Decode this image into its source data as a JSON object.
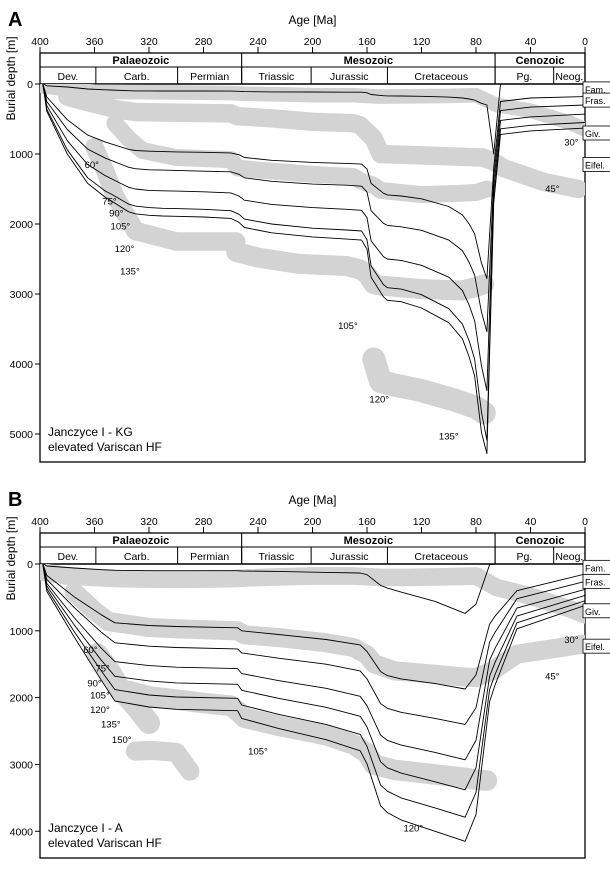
{
  "chart_data": [
    {
      "type": "line",
      "panel_label": "A",
      "title": "",
      "xlabel": "Age [Ma]",
      "ylabel": "Burial depth [m]",
      "xlim": [
        400,
        0
      ],
      "ylim": [
        0,
        5400
      ],
      "x_ticks": [
        400,
        360,
        320,
        280,
        240,
        200,
        160,
        120,
        80,
        40,
        0
      ],
      "y_ticks": [
        0,
        1000,
        2000,
        3000,
        4000,
        5000
      ],
      "eras": [
        {
          "label": "Palaeozoic",
          "from": 400,
          "to": 252
        },
        {
          "label": "Mesozoic",
          "from": 252,
          "to": 66
        },
        {
          "label": "Cenozoic",
          "from": 66,
          "to": 0
        }
      ],
      "periods": [
        {
          "label": "Dev.",
          "from": 400,
          "to": 359
        },
        {
          "label": "Carb.",
          "from": 359,
          "to": 299
        },
        {
          "label": "Permian",
          "from": 299,
          "to": 252
        },
        {
          "label": "Triassic",
          "from": 252,
          "to": 201
        },
        {
          "label": "Jurassic",
          "from": 201,
          "to": 145
        },
        {
          "label": "Cretaceous",
          "from": 145,
          "to": 66
        },
        {
          "label": "Pg.",
          "from": 66,
          "to": 23
        },
        {
          "label": "Neog.",
          "from": 23,
          "to": 0
        }
      ],
      "stage_labels": [
        "Fam.",
        "Fras.",
        "Giv.",
        "Eifel."
      ],
      "annotation": [
        "Janczyce I - KG",
        "elevated Variscan HF"
      ],
      "series": [
        {
          "x": [
            398,
            395,
            380,
            365,
            352,
            348,
            335,
            330,
            320,
            310,
            300,
            280,
            260,
            254,
            250,
            230,
            200,
            175,
            164,
            160,
            157,
            148,
            145,
            135,
            120,
            100,
            90,
            85,
            81,
            76,
            72,
            67,
            62,
            40,
            0
          ],
          "y": [
            -10,
            25,
            43,
            71,
            83,
            86,
            95,
            98,
            99,
            100,
            100,
            100,
            101,
            104,
            109,
            113,
            115,
            117,
            117,
            125,
            150,
            167,
            170,
            171,
            175,
            187,
            200,
            215,
            230,
            275,
            300,
            1000,
            0,
            0,
            0
          ]
        },
        {
          "x": [
            398,
            395,
            380,
            365,
            352,
            348,
            335,
            330,
            320,
            310,
            300,
            280,
            260,
            254,
            250,
            230,
            200,
            175,
            164,
            160,
            157,
            148,
            145,
            135,
            120,
            100,
            90,
            85,
            81,
            76,
            72,
            67,
            62,
            40,
            0
          ],
          "y": [
            -10,
            185,
            510,
            730,
            830,
            855,
            935,
            950,
            960,
            965,
            970,
            975,
            985,
            1010,
            1050,
            1090,
            1120,
            1135,
            1145,
            1215,
            1420,
            1560,
            1585,
            1600,
            1640,
            1750,
            1870,
            2000,
            2140,
            2560,
            2780,
            1200,
            250,
            200,
            180
          ]
        },
        {
          "x": [
            398,
            395,
            380,
            365,
            352,
            348,
            335,
            330,
            320,
            310,
            300,
            280,
            260,
            254,
            250,
            230,
            200,
            175,
            164,
            160,
            157,
            148,
            145,
            135,
            120,
            100,
            90,
            85,
            81,
            76,
            72,
            67,
            62,
            40,
            0
          ],
          "y": [
            -10,
            250,
            650,
            930,
            1060,
            1090,
            1190,
            1210,
            1225,
            1230,
            1235,
            1245,
            1255,
            1290,
            1340,
            1390,
            1430,
            1445,
            1460,
            1545,
            1810,
            1990,
            2020,
            2040,
            2090,
            2230,
            2380,
            2550,
            2730,
            3260,
            3540,
            1350,
            380,
            330,
            300
          ]
        },
        {
          "x": [
            398,
            395,
            380,
            365,
            352,
            348,
            335,
            330,
            320,
            310,
            300,
            280,
            260,
            254,
            250,
            230,
            200,
            175,
            164,
            160,
            157,
            148,
            145,
            135,
            120,
            100,
            90,
            85,
            81,
            76,
            72,
            67,
            62,
            40,
            0
          ],
          "y": [
            -10,
            310,
            810,
            1150,
            1310,
            1350,
            1475,
            1500,
            1520,
            1525,
            1530,
            1540,
            1555,
            1600,
            1660,
            1720,
            1765,
            1790,
            1805,
            1910,
            2240,
            2465,
            2500,
            2520,
            2590,
            2760,
            2950,
            3160,
            3380,
            4030,
            4380,
            1500,
            520,
            470,
            430
          ]
        },
        {
          "x": [
            398,
            395,
            380,
            365,
            352,
            348,
            335,
            330,
            320,
            310,
            300,
            280,
            260,
            254,
            250,
            230,
            200,
            175,
            164,
            160,
            157,
            148,
            145,
            135,
            120,
            100,
            90,
            85,
            81,
            76,
            72,
            67,
            62,
            40,
            0
          ],
          "y": [
            -10,
            360,
            940,
            1340,
            1530,
            1570,
            1715,
            1745,
            1765,
            1775,
            1780,
            1790,
            1810,
            1860,
            1930,
            2000,
            2060,
            2085,
            2100,
            2225,
            2600,
            2865,
            2910,
            2930,
            3010,
            3210,
            3430,
            3670,
            3930,
            4690,
            5090,
            1650,
            640,
            590,
            550
          ]
        },
        {
          "x": [
            398,
            395,
            380,
            365,
            352,
            348,
            335,
            330,
            320,
            310,
            300,
            280,
            260,
            254,
            250,
            230,
            200,
            175,
            164,
            160,
            157,
            148,
            145,
            135,
            120,
            100,
            90,
            85,
            81,
            76,
            72,
            67,
            62,
            40,
            0
          ],
          "y": [
            -10,
            390,
            1000,
            1420,
            1620,
            1665,
            1825,
            1855,
            1875,
            1885,
            1890,
            1900,
            1920,
            1975,
            2050,
            2125,
            2185,
            2215,
            2230,
            2360,
            2760,
            3040,
            3090,
            3110,
            3200,
            3410,
            3640,
            3900,
            4170,
            4980,
            5280,
            1700,
            720,
            670,
            630
          ]
        }
      ]
    },
    {
      "type": "line",
      "panel_label": "B",
      "title": "",
      "xlabel": "Age [Ma]",
      "ylabel": "Burial depth [m]",
      "xlim": [
        400,
        0
      ],
      "ylim": [
        0,
        4400
      ],
      "x_ticks": [
        400,
        360,
        320,
        280,
        240,
        200,
        160,
        120,
        80,
        40,
        0
      ],
      "y_ticks": [
        0,
        1000,
        2000,
        3000,
        4000
      ],
      "eras": [
        {
          "label": "Palaeozoic",
          "from": 400,
          "to": 252
        },
        {
          "label": "Mesozoic",
          "from": 252,
          "to": 66
        },
        {
          "label": "Cenozoic",
          "from": 66,
          "to": 0
        }
      ],
      "periods": [
        {
          "label": "Dev.",
          "from": 400,
          "to": 359
        },
        {
          "label": "Carb.",
          "from": 359,
          "to": 299
        },
        {
          "label": "Permian",
          "from": 299,
          "to": 252
        },
        {
          "label": "Triassic",
          "from": 252,
          "to": 201
        },
        {
          "label": "Jurassic",
          "from": 201,
          "to": 145
        },
        {
          "label": "Cretaceous",
          "from": 145,
          "to": 66
        },
        {
          "label": "Pg.",
          "from": 66,
          "to": 23
        },
        {
          "label": "Neog.",
          "from": 23,
          "to": 0
        }
      ],
      "stage_labels": [
        "Fam.",
        "Fras.",
        "Giv.",
        "Eifel."
      ],
      "annotation": [
        "Janczyce I - A",
        "elevated Variscan HF"
      ],
      "series": [
        {
          "x": [
            398,
            395,
            375,
            355,
            345,
            320,
            300,
            255,
            252,
            225,
            190,
            165,
            160,
            150,
            145,
            135,
            110,
            88,
            80,
            70,
            66,
            50,
            0
          ],
          "y": [
            -10,
            30,
            60,
            85,
            95,
            100,
            100,
            100,
            105,
            110,
            125,
            135,
            160,
            320,
            360,
            420,
            560,
            740,
            600,
            10,
            0,
            0,
            0
          ]
        },
        {
          "x": [
            398,
            395,
            375,
            355,
            345,
            320,
            300,
            255,
            252,
            225,
            190,
            165,
            160,
            150,
            145,
            135,
            110,
            88,
            80,
            70,
            66,
            50,
            0
          ],
          "y": [
            -10,
            170,
            490,
            760,
            880,
            920,
            935,
            955,
            1000,
            1055,
            1130,
            1210,
            1310,
            1610,
            1670,
            1720,
            1790,
            1870,
            1660,
            900,
            780,
            400,
            150
          ]
        },
        {
          "x": [
            398,
            395,
            375,
            355,
            345,
            320,
            300,
            255,
            252,
            225,
            190,
            165,
            160,
            150,
            145,
            135,
            110,
            88,
            80,
            70,
            66,
            50,
            0
          ],
          "y": [
            -10,
            230,
            650,
            1020,
            1180,
            1230,
            1250,
            1270,
            1330,
            1410,
            1500,
            1600,
            1720,
            2090,
            2160,
            2220,
            2310,
            2400,
            2150,
            1170,
            1020,
            520,
            260
          ]
        },
        {
          "x": [
            398,
            395,
            375,
            355,
            345,
            320,
            300,
            255,
            252,
            225,
            190,
            165,
            160,
            150,
            145,
            135,
            110,
            88,
            80,
            70,
            66,
            50,
            0
          ],
          "y": [
            -10,
            290,
            800,
            1260,
            1460,
            1520,
            1545,
            1565,
            1640,
            1745,
            1860,
            1980,
            2120,
            2560,
            2640,
            2710,
            2820,
            2930,
            2640,
            1440,
            1260,
            660,
            380
          ]
        },
        {
          "x": [
            398,
            395,
            375,
            355,
            345,
            320,
            300,
            255,
            252,
            225,
            190,
            165,
            160,
            150,
            145,
            135,
            110,
            88,
            80,
            70,
            66,
            50,
            0
          ],
          "y": [
            -10,
            330,
            910,
            1440,
            1680,
            1750,
            1780,
            1800,
            1890,
            2010,
            2145,
            2280,
            2440,
            2960,
            3050,
            3130,
            3260,
            3380,
            3050,
            1680,
            1470,
            780,
            470
          ]
        },
        {
          "x": [
            398,
            395,
            375,
            355,
            345,
            320,
            300,
            255,
            252,
            225,
            190,
            165,
            160,
            150,
            145,
            135,
            110,
            88,
            80,
            70,
            66,
            50,
            0
          ],
          "y": [
            -10,
            370,
            1010,
            1600,
            1880,
            1960,
            1990,
            2010,
            2110,
            2250,
            2400,
            2550,
            2730,
            3310,
            3400,
            3500,
            3650,
            3790,
            3420,
            1880,
            1650,
            880,
            550
          ]
        },
        {
          "x": [
            398,
            395,
            375,
            355,
            345,
            320,
            300,
            255,
            252,
            225,
            190,
            165,
            160,
            150,
            145,
            135,
            110,
            88,
            80,
            70,
            66,
            50,
            0
          ],
          "y": [
            -10,
            410,
            1090,
            1740,
            2050,
            2140,
            2175,
            2195,
            2310,
            2460,
            2630,
            2795,
            2990,
            3620,
            3720,
            3830,
            4000,
            4150,
            3750,
            2060,
            1810,
            970,
            620
          ]
        }
      ]
    }
  ]
}
